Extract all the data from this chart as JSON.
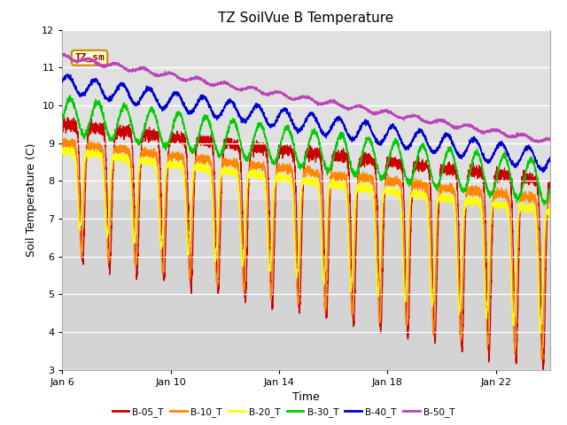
{
  "title": "TZ SoilVue B Temperature",
  "xlabel": "Time",
  "ylabel": "Soil Temperature (C)",
  "ylim": [
    3.0,
    12.0
  ],
  "yticks": [
    3.0,
    4.0,
    5.0,
    6.0,
    7.0,
    8.0,
    9.0,
    10.0,
    11.0,
    12.0
  ],
  "xtick_labels": [
    "Jan 6",
    "Jan 10",
    "Jan 14",
    "Jan 18",
    "Jan 22"
  ],
  "xtick_positions": [
    0,
    4,
    8,
    12,
    16
  ],
  "series_labels": [
    "B-05_T",
    "B-10_T",
    "B-20_T",
    "B-30_T",
    "B-40_T",
    "B-50_T"
  ],
  "series_colors": [
    "#cc0000",
    "#ff8800",
    "#ffff00",
    "#00cc00",
    "#0000cc",
    "#bb44bb"
  ],
  "legend_label": "TZ_sm",
  "legend_bg": "#ffffcc",
  "legend_border": "#cc8800",
  "plot_bg_upper": "#e0e0e0",
  "plot_bg_lower": "#d0d0d0",
  "shade_y_threshold": 7.5,
  "title_fontsize": 11,
  "axis_fontsize": 9,
  "tick_fontsize": 8,
  "num_days": 18,
  "samples_per_day": 240
}
